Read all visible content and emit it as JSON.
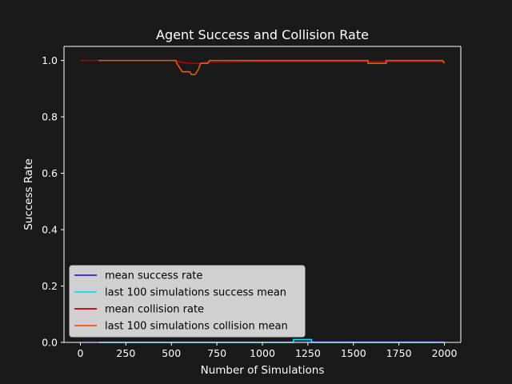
{
  "chart_data": {
    "type": "line",
    "title": "Agent Success and Collision Rate",
    "xlabel": "Number of Simulations",
    "ylabel": "Success Rate",
    "xlim": [
      -90,
      2090
    ],
    "ylim": [
      0,
      1.05
    ],
    "xticks": [
      0,
      250,
      500,
      750,
      1000,
      1250,
      1500,
      1750,
      2000
    ],
    "yticks": [
      0.0,
      0.2,
      0.4,
      0.6,
      0.8,
      1.0
    ],
    "xtick_labels": [
      "0",
      "250",
      "500",
      "750",
      "1000",
      "1250",
      "1500",
      "1750",
      "2000"
    ],
    "ytick_labels": [
      "0.0",
      "0.2",
      "0.4",
      "0.6",
      "0.8",
      "1.0"
    ],
    "grid": false,
    "legend_position": "lower-left",
    "series": [
      {
        "name": "mean success rate",
        "color": "#3a1bd6",
        "x": [
          0,
          100,
          600,
          1200,
          1300,
          2000
        ],
        "y": [
          0.0,
          0.0,
          0.0,
          0.001,
          0.002,
          0.002
        ]
      },
      {
        "name": "last 100 simulations success mean",
        "color": "#00e5ff",
        "x": [
          100,
          1170,
          1170,
          1270,
          1270,
          2000
        ],
        "y": [
          0.0,
          0.0,
          0.01,
          0.01,
          0.0,
          0.0
        ]
      },
      {
        "name": "mean collision rate",
        "color": "#b30000",
        "x": [
          0,
          520,
          560,
          620,
          660,
          700,
          1000,
          1500,
          1700,
          2000
        ],
        "y": [
          1.0,
          1.0,
          0.993,
          0.99,
          0.99,
          0.994,
          0.996,
          0.996,
          0.996,
          0.996
        ]
      },
      {
        "name": "last 100 simulations collision mean",
        "color": "#e85a0c",
        "x": [
          100,
          525,
          530,
          540,
          550,
          560,
          600,
          610,
          630,
          640,
          650,
          660,
          700,
          710,
          1580,
          1580,
          1680,
          1680,
          1990,
          2000
        ],
        "y": [
          1.0,
          1.0,
          0.99,
          0.98,
          0.97,
          0.96,
          0.96,
          0.95,
          0.95,
          0.96,
          0.97,
          0.99,
          0.99,
          1.0,
          1.0,
          0.99,
          0.99,
          1.0,
          1.0,
          0.99
        ]
      }
    ]
  }
}
